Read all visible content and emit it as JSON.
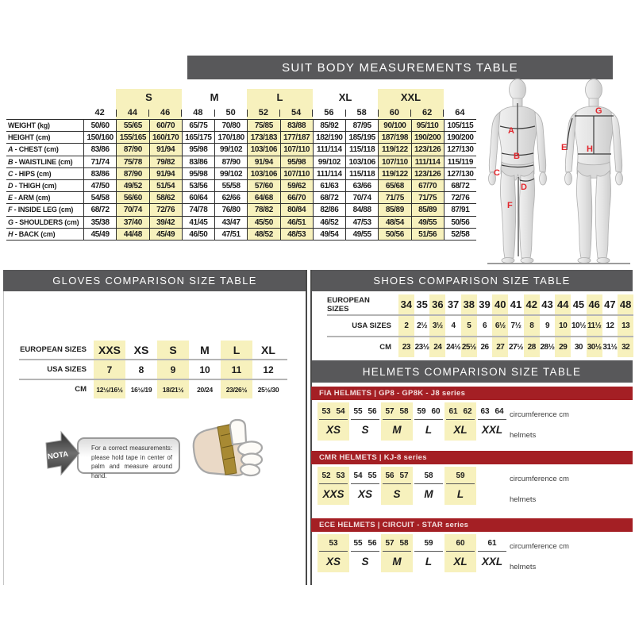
{
  "colors": {
    "accent_red": "#a41f24",
    "highlight_yellow": "#f7f1bd",
    "bar_gray": "#58585a"
  },
  "suit_table": {
    "title": "SUIT BODY MEASUREMENTS TABLE",
    "size_groups": [
      {
        "label": "",
        "span": 1,
        "highlight": false
      },
      {
        "label": "S",
        "span": 2,
        "highlight": true
      },
      {
        "label": "M",
        "span": 2,
        "highlight": false
      },
      {
        "label": "L",
        "span": 2,
        "highlight": true
      },
      {
        "label": "XL",
        "span": 2,
        "highlight": false
      },
      {
        "label": "XXL",
        "span": 2,
        "highlight": true
      },
      {
        "label": "",
        "span": 1,
        "highlight": false
      }
    ],
    "columns": [
      "42",
      "44",
      "46",
      "48",
      "50",
      "52",
      "54",
      "56",
      "58",
      "60",
      "62",
      "64"
    ],
    "highlighted_columns": [
      "44",
      "46",
      "52",
      "54",
      "60",
      "62"
    ],
    "rows": [
      {
        "prefix": "",
        "name": "WEIGHT (kg)",
        "values": [
          "50/60",
          "55/65",
          "60/70",
          "65/75",
          "70/80",
          "75/85",
          "83/88",
          "85/92",
          "87/95",
          "90/100",
          "95/110",
          "105/115"
        ]
      },
      {
        "prefix": "",
        "name": "HEIGHT (cm)",
        "values": [
          "150/160",
          "155/165",
          "160/170",
          "165/175",
          "170/180",
          "173/183",
          "177/187",
          "182/190",
          "185/195",
          "187/198",
          "190/200",
          "190/200"
        ]
      },
      {
        "prefix": "A",
        "name": "CHEST (cm)",
        "values": [
          "83/86",
          "87/90",
          "91/94",
          "95/98",
          "99/102",
          "103/106",
          "107/110",
          "111/114",
          "115/118",
          "119/122",
          "123/126",
          "127/130"
        ]
      },
      {
        "prefix": "B",
        "name": "WAISTLINE (cm)",
        "values": [
          "71/74",
          "75/78",
          "79/82",
          "83/86",
          "87/90",
          "91/94",
          "95/98",
          "99/102",
          "103/106",
          "107/110",
          "111/114",
          "115/119"
        ]
      },
      {
        "prefix": "C",
        "name": "HIPS (cm)",
        "values": [
          "83/86",
          "87/90",
          "91/94",
          "95/98",
          "99/102",
          "103/106",
          "107/110",
          "111/114",
          "115/118",
          "119/122",
          "123/126",
          "127/130"
        ]
      },
      {
        "prefix": "D",
        "name": "THIGH (cm)",
        "values": [
          "47/50",
          "49/52",
          "51/54",
          "53/56",
          "55/58",
          "57/60",
          "59/62",
          "61/63",
          "63/66",
          "65/68",
          "67/70",
          "68/72"
        ]
      },
      {
        "prefix": "E",
        "name": "ARM (cm)",
        "values": [
          "54/58",
          "56/60",
          "58/62",
          "60/64",
          "62/66",
          "64/68",
          "66/70",
          "68/72",
          "70/74",
          "71/75",
          "71/75",
          "72/76"
        ]
      },
      {
        "prefix": "F",
        "name": "INSIDE LEG (cm)",
        "values": [
          "68/72",
          "70/74",
          "72/76",
          "74/78",
          "76/80",
          "78/82",
          "80/84",
          "82/86",
          "84/88",
          "85/89",
          "85/89",
          "87/91"
        ]
      },
      {
        "prefix": "G",
        "name": "SHOULDERS (cm)",
        "values": [
          "35/38",
          "37/40",
          "39/42",
          "41/45",
          "43/47",
          "45/50",
          "46/51",
          "46/52",
          "47/53",
          "48/54",
          "49/55",
          "50/56"
        ]
      },
      {
        "prefix": "H",
        "name": "BACK (cm)",
        "values": [
          "45/49",
          "44/48",
          "45/49",
          "46/50",
          "47/51",
          "48/52",
          "48/53",
          "49/54",
          "49/55",
          "50/56",
          "51/56",
          "52/58"
        ]
      }
    ]
  },
  "figures": {
    "front_labels": [
      "A",
      "B",
      "C",
      "D",
      "F"
    ],
    "back_labels": [
      "G",
      "E",
      "H"
    ]
  },
  "gloves_table": {
    "title": "GLOVES COMPARISON SIZE TABLE",
    "row_labels": [
      "EUROPEAN SIZES",
      "USA SIZES",
      "CM"
    ],
    "columns": [
      {
        "eu": "XXS",
        "usa": "7",
        "cm": "12½/16½",
        "highlight": true
      },
      {
        "eu": "XS",
        "usa": "8",
        "cm": "16½/19",
        "highlight": false
      },
      {
        "eu": "S",
        "usa": "9",
        "cm": "18/21½",
        "highlight": true
      },
      {
        "eu": "M",
        "usa": "10",
        "cm": "20/24",
        "highlight": false
      },
      {
        "eu": "L",
        "usa": "11",
        "cm": "23/26½",
        "highlight": true
      },
      {
        "eu": "XL",
        "usa": "12",
        "cm": "25½/30",
        "highlight": false
      }
    ]
  },
  "note": {
    "tag": "NOTA",
    "text": "For a correct measurements: please hold tape in center of palm and measure around hand."
  },
  "shoes_table": {
    "title": "SHOES COMPARISON SIZE TABLE",
    "row_labels": [
      "EUROPEAN SIZES",
      "USA SIZES",
      "CM"
    ],
    "columns": [
      {
        "eu": "34",
        "usa": "2",
        "cm": "23",
        "highlight": true
      },
      {
        "eu": "35",
        "usa": "2½",
        "cm": "23½",
        "highlight": false
      },
      {
        "eu": "36",
        "usa": "3½",
        "cm": "24",
        "highlight": true
      },
      {
        "eu": "37",
        "usa": "4",
        "cm": "24½",
        "highlight": false
      },
      {
        "eu": "38",
        "usa": "5",
        "cm": "25½",
        "highlight": true
      },
      {
        "eu": "39",
        "usa": "6",
        "cm": "26",
        "highlight": false
      },
      {
        "eu": "40",
        "usa": "6½",
        "cm": "27",
        "highlight": true
      },
      {
        "eu": "41",
        "usa": "7½",
        "cm": "27½",
        "highlight": false
      },
      {
        "eu": "42",
        "usa": "8",
        "cm": "28",
        "highlight": true
      },
      {
        "eu": "43",
        "usa": "9",
        "cm": "28½",
        "highlight": false
      },
      {
        "eu": "44",
        "usa": "10",
        "cm": "29",
        "highlight": true
      },
      {
        "eu": "45",
        "usa": "10½",
        "cm": "30",
        "highlight": false
      },
      {
        "eu": "46",
        "usa": "11½",
        "cm": "30½",
        "highlight": true
      },
      {
        "eu": "47",
        "usa": "12",
        "cm": "31½",
        "highlight": false
      },
      {
        "eu": "48",
        "usa": "13",
        "cm": "32",
        "highlight": true
      }
    ]
  },
  "helmets": {
    "title": "HELMETS COMPARISON SIZE TABLE",
    "col_label_top": "circumference cm",
    "col_label_bottom": "helmets",
    "sections": [
      {
        "name": "FIA HELMETS | GP8 - GP8K - J8 series",
        "groups": [
          {
            "size": "XS",
            "nums": [
              "53",
              "54"
            ],
            "highlight": true
          },
          {
            "size": "S",
            "nums": [
              "55",
              "56"
            ],
            "highlight": false
          },
          {
            "size": "M",
            "nums": [
              "57",
              "58"
            ],
            "highlight": true
          },
          {
            "size": "L",
            "nums": [
              "59",
              "60"
            ],
            "highlight": false
          },
          {
            "size": "XL",
            "nums": [
              "61",
              "62"
            ],
            "highlight": true
          },
          {
            "size": "XXL",
            "nums": [
              "63",
              "64"
            ],
            "highlight": false
          }
        ]
      },
      {
        "name": "CMR HELMETS | KJ-8 series",
        "groups": [
          {
            "size": "XXS",
            "nums": [
              "52",
              "53"
            ],
            "highlight": true
          },
          {
            "size": "XS",
            "nums": [
              "54",
              "55"
            ],
            "highlight": false
          },
          {
            "size": "S",
            "nums": [
              "56",
              "57"
            ],
            "highlight": true
          },
          {
            "size": "M",
            "nums": [
              "58"
            ],
            "highlight": false
          },
          {
            "size": "L",
            "nums": [
              "59"
            ],
            "highlight": true
          }
        ]
      },
      {
        "name": "ECE HELMETS | CIRCUIT - STAR series",
        "groups": [
          {
            "size": "XS",
            "nums": [
              "53"
            ],
            "highlight": true
          },
          {
            "size": "S",
            "nums": [
              "55",
              "56"
            ],
            "highlight": false
          },
          {
            "size": "M",
            "nums": [
              "57",
              "58"
            ],
            "highlight": true
          },
          {
            "size": "L",
            "nums": [
              "59"
            ],
            "highlight": false
          },
          {
            "size": "XL",
            "nums": [
              "60"
            ],
            "highlight": true
          },
          {
            "size": "XXL",
            "nums": [
              "61"
            ],
            "highlight": false
          }
        ]
      }
    ]
  }
}
